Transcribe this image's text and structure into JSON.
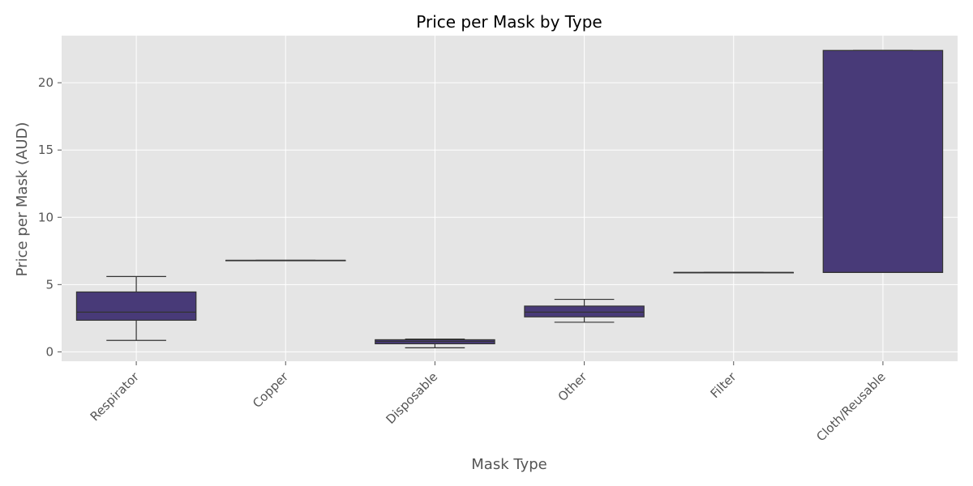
{
  "chart_data": {
    "type": "box",
    "title": "Price per Mask by Type",
    "xlabel": "Mask Type",
    "ylabel": "Price per Mask (AUD)",
    "ylim": [
      -0.7,
      23.5
    ],
    "yticks": [
      0,
      5,
      10,
      15,
      20
    ],
    "grid": true,
    "categories": [
      "Respirator",
      "Copper",
      "Disposable",
      "Other",
      "Filter",
      "Cloth/Reusable"
    ],
    "series": [
      {
        "boxes": [
          {
            "category": "Respirator",
            "whisker_low": 0.85,
            "q1": 2.35,
            "median": 2.95,
            "q3": 4.45,
            "whisker_high": 5.6
          },
          {
            "category": "Copper",
            "whisker_low": 6.8,
            "q1": 6.8,
            "median": 6.8,
            "q3": 6.8,
            "whisker_high": 6.8
          },
          {
            "category": "Disposable",
            "whisker_low": 0.3,
            "q1": 0.6,
            "median": 0.78,
            "q3": 0.9,
            "whisker_high": 0.95
          },
          {
            "category": "Other",
            "whisker_low": 2.2,
            "q1": 2.6,
            "median": 2.95,
            "q3": 3.4,
            "whisker_high": 3.9
          },
          {
            "category": "Filter",
            "whisker_low": 5.9,
            "q1": 5.9,
            "median": 5.9,
            "q3": 5.9,
            "whisker_high": 5.9
          },
          {
            "category": "Cloth/Reusable",
            "whisker_low": 5.9,
            "q1": 5.9,
            "median": 5.9,
            "q3": 22.4,
            "whisker_high": 22.4
          }
        ]
      }
    ],
    "colors": {
      "box_fill": "#483a78",
      "box_edge": "#333333",
      "plot_bg": "#e5e5e5",
      "grid": "#ffffff"
    }
  }
}
